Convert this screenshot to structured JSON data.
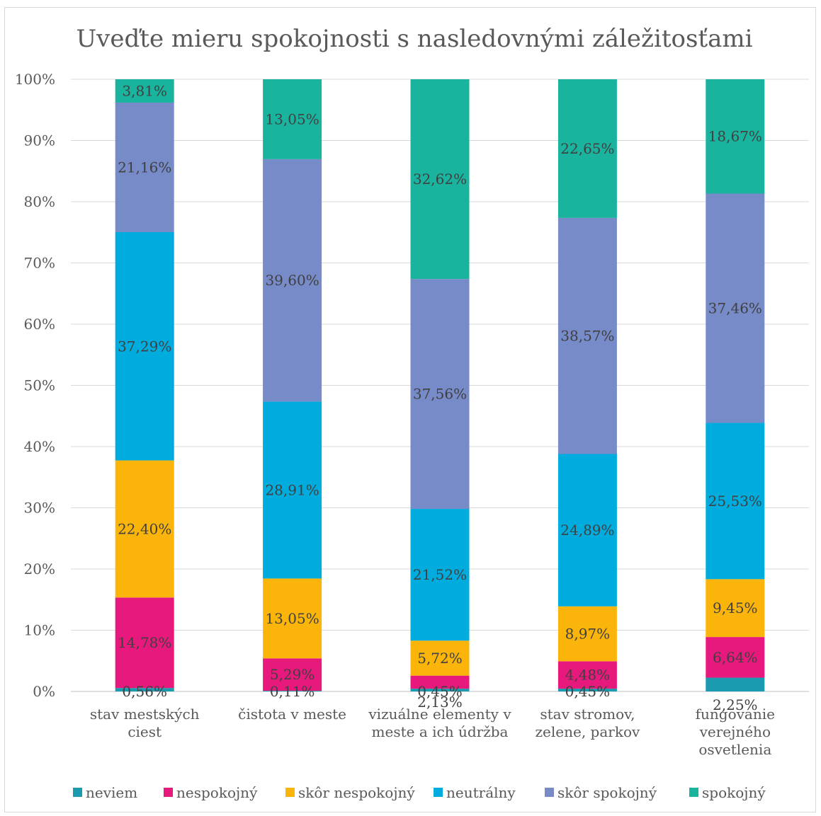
{
  "chart_data": {
    "type": "bar",
    "stacked": true,
    "percent_stacked": true,
    "title": "Uveďte mieru spokojnosti s nasledovnými záležitosťami",
    "xlabel": "",
    "ylabel": "",
    "ylim": [
      0,
      100
    ],
    "y_ticks": [
      "0%",
      "10%",
      "20%",
      "30%",
      "40%",
      "50%",
      "60%",
      "70%",
      "80%",
      "90%",
      "100%"
    ],
    "grid": true,
    "legend_position": "bottom",
    "categories": [
      [
        "stav mestských",
        "ciest"
      ],
      [
        "čistota v meste"
      ],
      [
        "vizuálne elementy v",
        "meste a ich údržba"
      ],
      [
        "stav stromov,",
        "zelene, parkov"
      ],
      [
        "fungovanie",
        "verejného",
        "osvetlenia"
      ]
    ],
    "series": [
      {
        "name": "neviem",
        "color": "#1a9bb0",
        "values": [
          0.56,
          0.11,
          0.45,
          0.45,
          2.25
        ],
        "labels": [
          "0,56%",
          "0,11%",
          "0,45%",
          "0,45%",
          "2,25%"
        ]
      },
      {
        "name": "nespokojný",
        "color": "#e8197c",
        "values": [
          14.78,
          5.29,
          2.13,
          4.48,
          6.64
        ],
        "labels": [
          "14,78%",
          "5,29%",
          "2,13%",
          "4,48%",
          "6,64%"
        ]
      },
      {
        "name": "skôr nespokojný",
        "color": "#fbb40a",
        "values": [
          22.4,
          13.05,
          5.72,
          8.97,
          9.45
        ],
        "labels": [
          "22,40%",
          "13,05%",
          "5,72%",
          "8,97%",
          "9,45%"
        ]
      },
      {
        "name": "neutrálny",
        "color": "#00abdd",
        "values": [
          37.29,
          28.91,
          21.52,
          24.89,
          25.53
        ],
        "labels": [
          "37,29%",
          "28,91%",
          "21,52%",
          "24,89%",
          "25,53%"
        ]
      },
      {
        "name": "skôr spokojný",
        "color": "#768bc8",
        "values": [
          21.16,
          39.6,
          37.56,
          38.57,
          37.46
        ],
        "labels": [
          "21,16%",
          "39,60%",
          "37,56%",
          "38,57%",
          "37,46%"
        ]
      },
      {
        "name": "spokojný",
        "color": "#1ab39e",
        "values": [
          3.81,
          13.05,
          32.62,
          22.65,
          18.67
        ],
        "labels": [
          "3,81%",
          "13,05%",
          "32,62%",
          "22,65%",
          "18,67%"
        ]
      }
    ]
  }
}
